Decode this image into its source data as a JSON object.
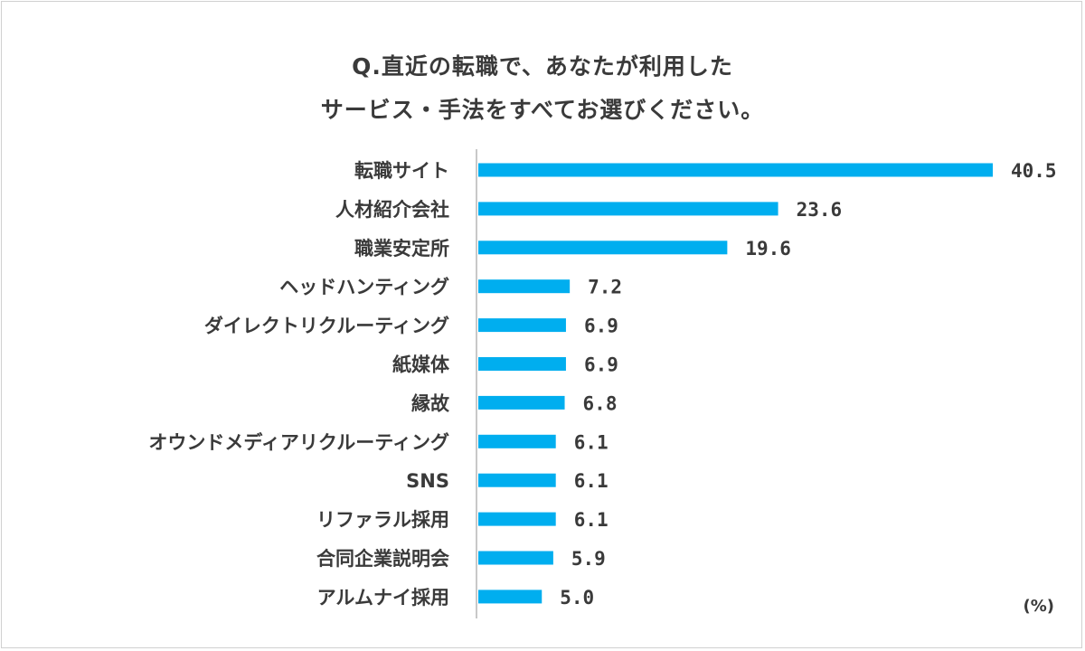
{
  "chart_data": {
    "type": "bar",
    "orientation": "horizontal",
    "title": [
      "Q.直近の転職で、あなたが利用した",
      "サービス・手法をすべてお選びください。"
    ],
    "unit": "(%)",
    "categories": [
      "転職サイト",
      "人材紹介会社",
      "職業安定所",
      "ヘッドハンティング",
      "ダイレクトリクルーティング",
      "紙媒体",
      "縁故",
      "オウンドメディアリクルーティング",
      "SNS",
      "リファラル採用",
      "合同企業説明会",
      "アルムナイ採用"
    ],
    "values": [
      40.5,
      23.6,
      19.6,
      7.2,
      6.9,
      6.9,
      6.8,
      6.1,
      6.1,
      6.1,
      5.9,
      5.0
    ],
    "value_labels": [
      "40.5",
      "23.6",
      "19.6",
      "7.2",
      "6.9",
      "6.9",
      "6.8",
      "6.1",
      "6.1",
      "6.1",
      "5.9",
      "5.0"
    ],
    "xlim": [
      0,
      40.5
    ],
    "grid": false,
    "bar_color": "#00aeef"
  }
}
